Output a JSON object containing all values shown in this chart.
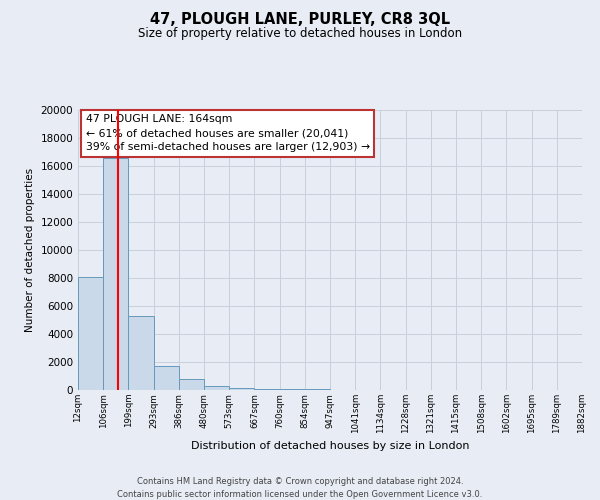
{
  "title": "47, PLOUGH LANE, PURLEY, CR8 3QL",
  "subtitle": "Size of property relative to detached houses in London",
  "xlabel": "Distribution of detached houses by size in London",
  "ylabel": "Number of detached properties",
  "bin_labels": [
    "12sqm",
    "106sqm",
    "199sqm",
    "293sqm",
    "386sqm",
    "480sqm",
    "573sqm",
    "667sqm",
    "760sqm",
    "854sqm",
    "947sqm",
    "1041sqm",
    "1134sqm",
    "1228sqm",
    "1321sqm",
    "1415sqm",
    "1508sqm",
    "1602sqm",
    "1695sqm",
    "1789sqm",
    "1882sqm"
  ],
  "bar_values": [
    8100,
    16600,
    5300,
    1750,
    800,
    300,
    150,
    100,
    80,
    60,
    0,
    0,
    0,
    0,
    0,
    0,
    0,
    0,
    0,
    0
  ],
  "bar_color": "#c9d9ea",
  "bar_edge_color": "#6699bb",
  "red_line_x": 1.58,
  "annotation_line1": "47 PLOUGH LANE: 164sqm",
  "annotation_line2": "← 61% of detached houses are smaller (20,041)",
  "annotation_line3": "39% of semi-detached houses are larger (12,903) →",
  "ylim": [
    0,
    20000
  ],
  "yticks": [
    0,
    2000,
    4000,
    6000,
    8000,
    10000,
    12000,
    14000,
    16000,
    18000,
    20000
  ],
  "grid_color": "#c8d0dc",
  "background_color": "#e8edf5",
  "footer_line1": "Contains HM Land Registry data © Crown copyright and database right 2024.",
  "footer_line2": "Contains public sector information licensed under the Open Government Licence v3.0."
}
